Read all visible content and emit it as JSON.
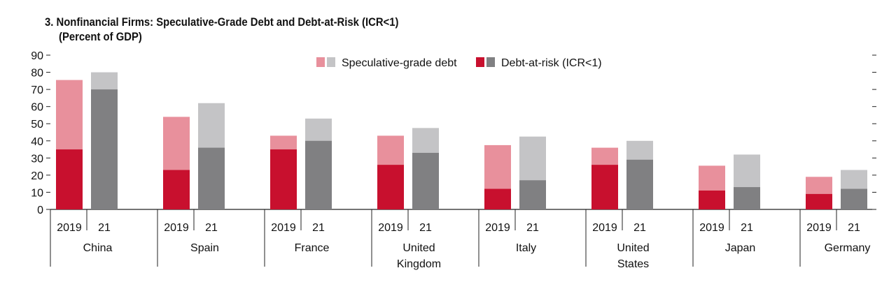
{
  "chart_data": {
    "type": "bar",
    "title": "3. Nonfinancial Firms: Speculative-Grade Debt and Debt-at-Risk (ICR<1)",
    "subtitle": "(Percent of GDP)",
    "ylim": [
      0,
      90
    ],
    "yticks": [
      "0",
      "10",
      "20",
      "30",
      "40",
      "50",
      "60",
      "70",
      "80",
      "90"
    ],
    "year_labels": [
      "2019",
      "21"
    ],
    "countries": [
      {
        "name": [
          "China"
        ],
        "spec_2019": 75.5,
        "risk_2019": 35,
        "spec_21": 80,
        "risk_21": 70
      },
      {
        "name": [
          "Spain"
        ],
        "spec_2019": 54,
        "risk_2019": 23,
        "spec_21": 62,
        "risk_21": 36
      },
      {
        "name": [
          "France"
        ],
        "spec_2019": 43,
        "risk_2019": 35,
        "spec_21": 53,
        "risk_21": 40
      },
      {
        "name": [
          "United",
          "Kingdom"
        ],
        "spec_2019": 43,
        "risk_2019": 26,
        "spec_21": 47.5,
        "risk_21": 33
      },
      {
        "name": [
          "Italy"
        ],
        "spec_2019": 37.5,
        "risk_2019": 12,
        "spec_21": 42.5,
        "risk_21": 17
      },
      {
        "name": [
          "United",
          "States"
        ],
        "spec_2019": 36,
        "risk_2019": 26,
        "spec_21": 40,
        "risk_21": 29
      },
      {
        "name": [
          "Japan"
        ],
        "spec_2019": 25.5,
        "risk_2019": 11,
        "spec_21": 32,
        "risk_21": 13
      },
      {
        "name": [
          "Germany"
        ],
        "spec_2019": 19,
        "risk_2019": 9,
        "spec_21": 23,
        "risk_21": 12
      }
    ],
    "series": [
      {
        "name": "Speculative-grade debt"
      },
      {
        "name": "Debt-at-risk (ICR<1)"
      }
    ],
    "legend_position": "top-center",
    "colors": {
      "spec_2019": "#e8909c",
      "risk_2019": "#c8102e",
      "spec_21": "#c4c4c6",
      "risk_21": "#808082"
    }
  }
}
